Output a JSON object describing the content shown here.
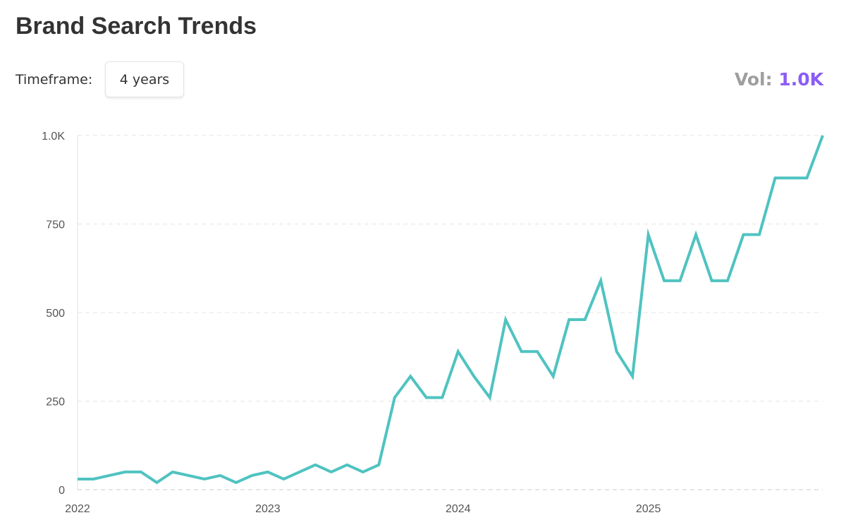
{
  "header": {
    "title": "Brand Search Trends"
  },
  "controls": {
    "timeframe_label": "Timeframe:",
    "timeframe_value": "4 years"
  },
  "volume": {
    "label": "Vol:",
    "value": "1.0K"
  },
  "colors": {
    "line": "#4fc3c1",
    "vol_value": "#8b5cf6",
    "vol_label": "#9e9e9e"
  },
  "chart_data": {
    "type": "line",
    "title": "",
    "xlabel": "",
    "ylabel": "",
    "ylim": [
      0,
      1000
    ],
    "grid": true,
    "y_ticks": [
      0,
      250,
      500,
      750,
      1000
    ],
    "y_tick_labels": [
      "0",
      "250",
      "500",
      "750",
      "1.0K"
    ],
    "x_tick_labels": [
      "2022",
      "2023",
      "2024",
      "2025"
    ],
    "x_start": "2022-01",
    "x_interval": "month",
    "values": [
      30,
      30,
      40,
      50,
      50,
      20,
      50,
      40,
      30,
      40,
      20,
      40,
      50,
      30,
      50,
      70,
      50,
      70,
      50,
      70,
      260,
      320,
      260,
      260,
      390,
      320,
      260,
      480,
      390,
      390,
      320,
      480,
      480,
      590,
      390,
      320,
      720,
      590,
      590,
      720,
      590,
      590,
      720,
      720,
      880,
      880,
      880,
      1000
    ]
  }
}
